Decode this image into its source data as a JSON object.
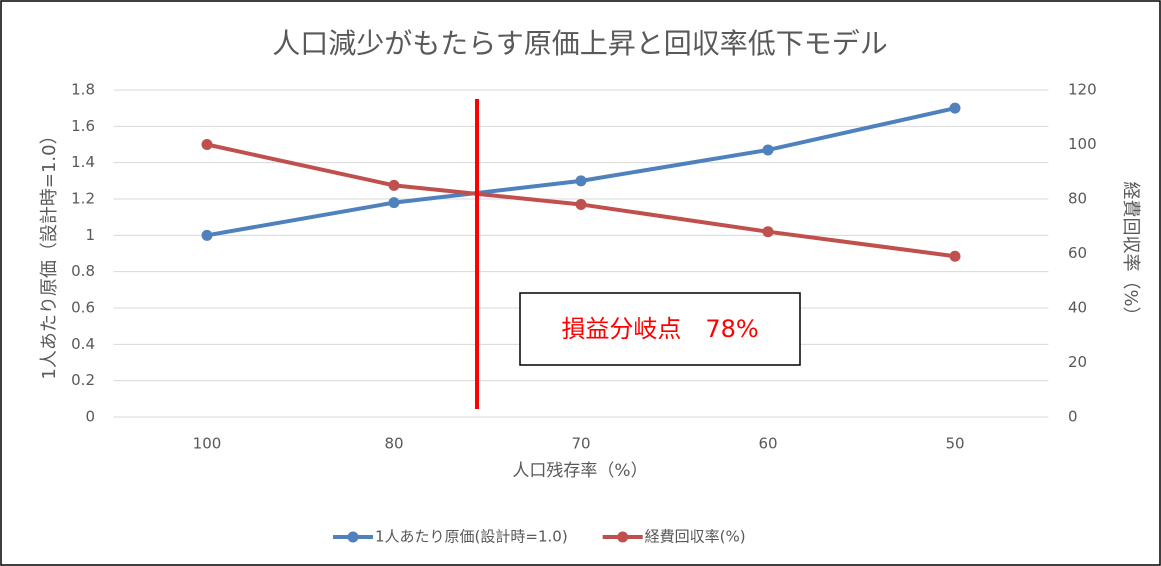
{
  "chart_data": {
    "type": "line",
    "title": "人口減少がもたらす原価上昇と回収率低下モデル",
    "x_label": "人口残存率（%）",
    "y_label": "1人あたり原価（設計時=1.0）",
    "y2_label": "経費回収率（%）",
    "annotation": "損益分岐点　78%",
    "categories": [
      "100",
      "80",
      "70",
      "60",
      "50"
    ],
    "series": [
      {
        "name": "1人あたり原価(設計時=1.0)",
        "color": "#4f81bd",
        "values": [
          1.0,
          1.18,
          1.3,
          1.47,
          1.7
        ]
      },
      {
        "name": "経費回収率(%)",
        "color": "#c0504d",
        "axis": "y2",
        "values": [
          100,
          85,
          78,
          68,
          59
        ]
      }
    ],
    "ylim": [
      0,
      1.8
    ],
    "yticks": [
      0,
      0.2,
      0.4,
      0.6,
      0.8,
      1,
      1.2,
      1.4,
      1.6,
      1.8
    ],
    "y2lim": [
      0,
      120
    ],
    "y2ticks": [
      0,
      20,
      40,
      60,
      80,
      100,
      120
    ],
    "grid": true,
    "legend": "bottom"
  }
}
